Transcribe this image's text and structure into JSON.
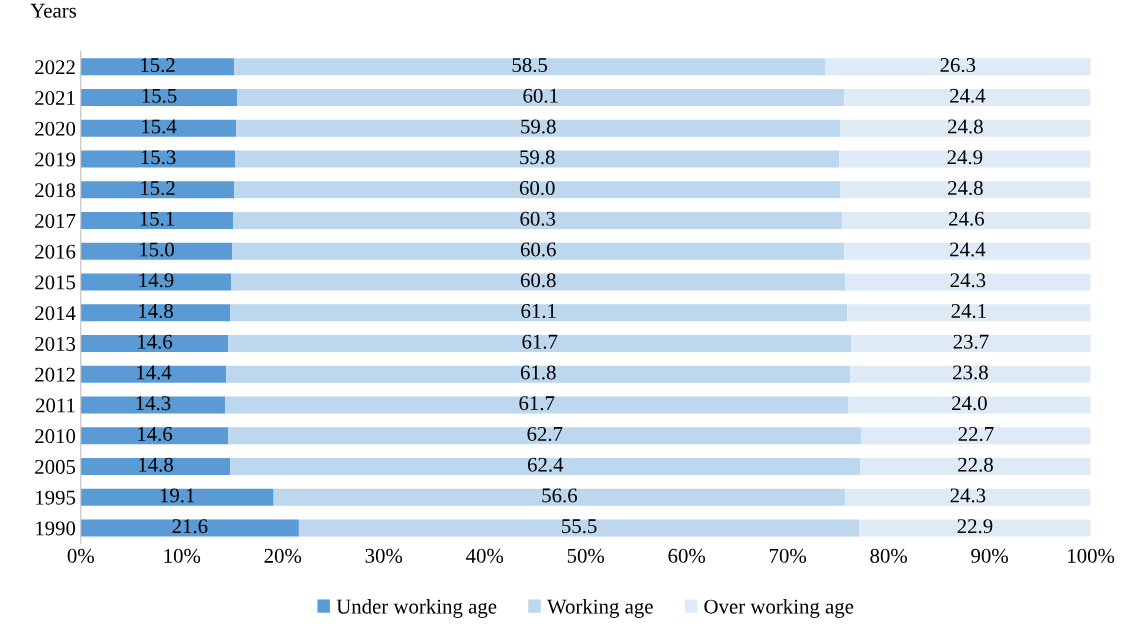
{
  "chart_data": {
    "type": "bar",
    "orientation": "horizontal",
    "stacked": true,
    "ylabel": "Years",
    "categories": [
      "2022",
      "2021",
      "2020",
      "2019",
      "2018",
      "2017",
      "2016",
      "2015",
      "2014",
      "2013",
      "2012",
      "2011",
      "2010",
      "2005",
      "1995",
      "1990"
    ],
    "series": [
      {
        "name": "Under working age",
        "color": "#5b9bd5",
        "values": [
          15.2,
          15.5,
          15.4,
          15.3,
          15.2,
          15.1,
          15.0,
          14.9,
          14.8,
          14.6,
          14.4,
          14.3,
          14.6,
          14.8,
          19.1,
          21.6
        ],
        "value_labels": [
          "15.2",
          "15.5",
          "15.4",
          "15.3",
          "15.2",
          "15.1",
          "15.0",
          "14.9",
          "14.8",
          "14.6",
          "14.4",
          "14.3",
          "14.6",
          "14.8",
          "19.1",
          "21.6"
        ]
      },
      {
        "name": "Working age",
        "color": "#bdd7ee",
        "values": [
          58.5,
          60.1,
          59.8,
          59.8,
          60.0,
          60.3,
          60.6,
          60.8,
          61.1,
          61.7,
          61.8,
          61.7,
          62.7,
          62.4,
          56.6,
          55.5
        ],
        "value_labels": [
          "58.5",
          "60.1",
          "59.8",
          "59.8",
          "60.0",
          "60.3",
          "60.6",
          "60.8",
          "61.1",
          "61.7",
          "61.8",
          "61.7",
          "62.7",
          "62.4",
          "56.6",
          "55.5"
        ]
      },
      {
        "name": "Over working age",
        "color": "#deebf7",
        "values": [
          26.3,
          24.4,
          24.8,
          24.9,
          24.8,
          24.6,
          24.4,
          24.3,
          24.1,
          23.7,
          23.8,
          24.0,
          22.7,
          22.8,
          24.3,
          22.9
        ],
        "value_labels": [
          "26.3",
          "24.4",
          "24.8",
          "24.9",
          "24.8",
          "24.6",
          "24.4",
          "24.3",
          "24.1",
          "23.7",
          "23.8",
          "24.0",
          "22.7",
          "22.8",
          "24.3",
          "22.9"
        ]
      }
    ],
    "xlim": [
      0,
      100
    ],
    "xticks": [
      {
        "value": 0,
        "label": "0%"
      },
      {
        "value": 10,
        "label": "10%"
      },
      {
        "value": 20,
        "label": "20%"
      },
      {
        "value": 30,
        "label": "30%"
      },
      {
        "value": 40,
        "label": "40%"
      },
      {
        "value": 50,
        "label": "50%"
      },
      {
        "value": 60,
        "label": "60%"
      },
      {
        "value": 70,
        "label": "70%"
      },
      {
        "value": 80,
        "label": "80%"
      },
      {
        "value": 90,
        "label": "90%"
      },
      {
        "value": 100,
        "label": "100%"
      }
    ],
    "legend": "bottom",
    "grid": false
  }
}
